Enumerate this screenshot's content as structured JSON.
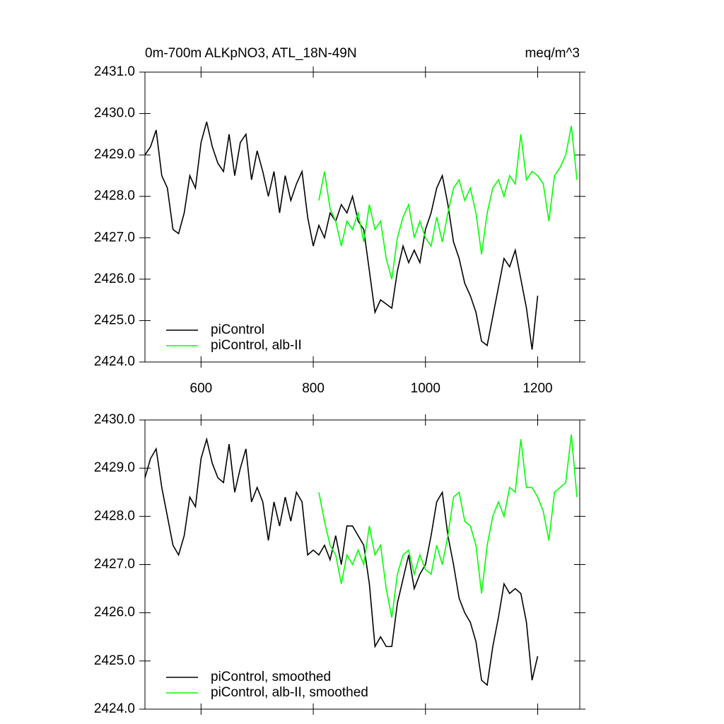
{
  "chart_data": [
    {
      "type": "line",
      "title": "0m-700m ALKpNO3, ATL_18N-49N",
      "units_label": "meq/m^3",
      "xlim": [
        500,
        1275
      ],
      "xticks": [
        600,
        800,
        1000,
        1200
      ],
      "x_tick_labels": true,
      "ylim": [
        2424,
        2431
      ],
      "yticks": [
        {
          "value": 2424,
          "label": "2424.0"
        },
        {
          "value": 2425,
          "label": "2425.0"
        },
        {
          "value": 2426,
          "label": "2426.0"
        },
        {
          "value": 2427,
          "label": "2427.0"
        },
        {
          "value": 2428,
          "label": "2428.0"
        },
        {
          "value": 2429,
          "label": "2429.0"
        },
        {
          "value": 2430,
          "label": "2430.0"
        },
        {
          "value": 2431,
          "label": "2431.0"
        }
      ],
      "legend": "lower left",
      "series": [
        {
          "name": "piControl",
          "color": "#000000",
          "x": [
            500,
            510,
            520,
            530,
            540,
            550,
            560,
            570,
            580,
            590,
            600,
            610,
            620,
            630,
            640,
            650,
            660,
            670,
            680,
            690,
            700,
            710,
            720,
            730,
            740,
            750,
            760,
            770,
            780,
            790,
            800,
            810,
            820,
            830,
            840,
            850,
            860,
            870,
            880,
            890,
            900,
            910,
            920,
            930,
            940,
            950,
            960,
            970,
            980,
            990,
            1000,
            1010,
            1020,
            1030,
            1040,
            1050,
            1060,
            1070,
            1080,
            1090,
            1100,
            1110,
            1120,
            1130,
            1140,
            1150,
            1160,
            1170,
            1180,
            1190,
            1200
          ],
          "values": [
            2429.0,
            2429.2,
            2429.6,
            2428.5,
            2428.2,
            2427.2,
            2427.1,
            2427.6,
            2428.5,
            2428.2,
            2429.3,
            2429.8,
            2429.2,
            2428.8,
            2428.6,
            2429.5,
            2428.5,
            2429.3,
            2429.5,
            2428.4,
            2429.1,
            2428.6,
            2428.0,
            2428.6,
            2427.6,
            2428.5,
            2427.9,
            2428.3,
            2428.6,
            2427.5,
            2426.8,
            2427.3,
            2427.0,
            2427.6,
            2427.4,
            2427.8,
            2427.6,
            2428.0,
            2427.4,
            2427.2,
            2426.2,
            2425.2,
            2425.5,
            2425.4,
            2425.3,
            2426.2,
            2426.8,
            2426.4,
            2426.7,
            2426.4,
            2427.2,
            2427.6,
            2428.2,
            2428.5,
            2427.8,
            2426.9,
            2426.5,
            2425.9,
            2425.6,
            2425.2,
            2424.5,
            2424.4,
            2425.1,
            2425.8,
            2426.5,
            2426.3,
            2426.7,
            2426.0,
            2425.3,
            2424.3,
            2425.6
          ]
        },
        {
          "name": "piControl, alb-II",
          "color": "#00ff00",
          "x": [
            810,
            820,
            830,
            840,
            850,
            860,
            870,
            880,
            890,
            900,
            910,
            920,
            930,
            940,
            950,
            960,
            970,
            980,
            990,
            1000,
            1010,
            1020,
            1030,
            1040,
            1050,
            1060,
            1070,
            1080,
            1090,
            1100,
            1110,
            1120,
            1130,
            1140,
            1150,
            1160,
            1170,
            1180,
            1190,
            1200,
            1210,
            1220,
            1230,
            1240,
            1250,
            1260,
            1270
          ],
          "values": [
            2427.9,
            2428.6,
            2427.7,
            2427.4,
            2426.8,
            2427.4,
            2427.2,
            2427.6,
            2426.9,
            2427.8,
            2427.2,
            2427.4,
            2426.5,
            2426.0,
            2427.0,
            2427.5,
            2427.8,
            2427.0,
            2427.4,
            2427.0,
            2426.8,
            2427.5,
            2426.9,
            2427.6,
            2428.2,
            2428.4,
            2427.9,
            2428.2,
            2427.6,
            2426.6,
            2427.6,
            2428.2,
            2428.4,
            2428.0,
            2428.5,
            2428.3,
            2429.5,
            2428.4,
            2428.6,
            2428.5,
            2428.3,
            2427.4,
            2428.5,
            2428.7,
            2429.0,
            2429.7,
            2428.4
          ]
        }
      ]
    },
    {
      "type": "line",
      "xlim": [
        500,
        1275
      ],
      "xticks": [
        600,
        800,
        1000,
        1200
      ],
      "x_tick_labels": false,
      "ylim": [
        2424,
        2430
      ],
      "yticks": [
        {
          "value": 2424,
          "label": "2424.0"
        },
        {
          "value": 2425,
          "label": "2425.0"
        },
        {
          "value": 2426,
          "label": "2426.0"
        },
        {
          "value": 2427,
          "label": "2427.0"
        },
        {
          "value": 2428,
          "label": "2428.0"
        },
        {
          "value": 2429,
          "label": "2429.0"
        },
        {
          "value": 2430,
          "label": "2430.0"
        }
      ],
      "legend": "lower left",
      "series": [
        {
          "name": "piControl, smoothed",
          "color": "#000000",
          "x": [
            500,
            510,
            520,
            530,
            540,
            550,
            560,
            570,
            580,
            590,
            600,
            610,
            620,
            630,
            640,
            650,
            660,
            670,
            680,
            690,
            700,
            710,
            720,
            730,
            740,
            750,
            760,
            770,
            780,
            790,
            800,
            810,
            820,
            830,
            840,
            850,
            860,
            870,
            880,
            890,
            900,
            910,
            920,
            930,
            940,
            950,
            960,
            970,
            980,
            990,
            1000,
            1010,
            1020,
            1030,
            1040,
            1050,
            1060,
            1070,
            1080,
            1090,
            1100,
            1110,
            1120,
            1130,
            1140,
            1150,
            1160,
            1170,
            1180,
            1190,
            1200
          ],
          "values": [
            2428.8,
            2429.2,
            2429.4,
            2428.6,
            2428.0,
            2427.4,
            2427.2,
            2427.6,
            2428.4,
            2428.2,
            2429.2,
            2429.6,
            2429.1,
            2428.8,
            2428.7,
            2429.5,
            2428.5,
            2429.0,
            2429.4,
            2428.3,
            2428.6,
            2428.3,
            2427.5,
            2428.3,
            2427.8,
            2428.4,
            2427.9,
            2428.5,
            2428.3,
            2427.2,
            2427.3,
            2427.2,
            2427.4,
            2427.1,
            2427.6,
            2427.0,
            2427.8,
            2427.8,
            2427.6,
            2427.4,
            2426.6,
            2425.3,
            2425.5,
            2425.3,
            2425.3,
            2426.2,
            2426.7,
            2427.2,
            2426.5,
            2426.8,
            2427.0,
            2427.6,
            2428.3,
            2428.5,
            2427.6,
            2427.0,
            2426.3,
            2426.0,
            2425.8,
            2425.4,
            2424.6,
            2424.5,
            2425.3,
            2425.9,
            2426.6,
            2426.4,
            2426.5,
            2426.4,
            2425.8,
            2424.6,
            2425.1
          ]
        },
        {
          "name": "piControl, alb-II, smoothed",
          "color": "#00ff00",
          "x": [
            810,
            820,
            830,
            840,
            850,
            860,
            870,
            880,
            890,
            900,
            910,
            920,
            930,
            940,
            950,
            960,
            970,
            980,
            990,
            1000,
            1010,
            1020,
            1030,
            1040,
            1050,
            1060,
            1070,
            1080,
            1090,
            1100,
            1110,
            1120,
            1130,
            1140,
            1150,
            1160,
            1170,
            1180,
            1190,
            1200,
            1210,
            1220,
            1230,
            1240,
            1250,
            1260,
            1270
          ],
          "values": [
            2428.5,
            2427.9,
            2427.4,
            2427.2,
            2426.6,
            2427.2,
            2427.0,
            2427.3,
            2427.0,
            2427.8,
            2427.2,
            2427.4,
            2426.5,
            2425.9,
            2426.8,
            2427.2,
            2427.3,
            2426.8,
            2427.2,
            2426.9,
            2426.8,
            2427.4,
            2427.0,
            2427.6,
            2428.4,
            2428.5,
            2427.9,
            2427.8,
            2427.4,
            2426.4,
            2427.4,
            2428.0,
            2428.3,
            2428.0,
            2428.6,
            2428.5,
            2429.6,
            2428.6,
            2428.6,
            2428.4,
            2428.1,
            2427.5,
            2428.5,
            2428.6,
            2428.7,
            2429.7,
            2428.4
          ]
        }
      ]
    }
  ]
}
